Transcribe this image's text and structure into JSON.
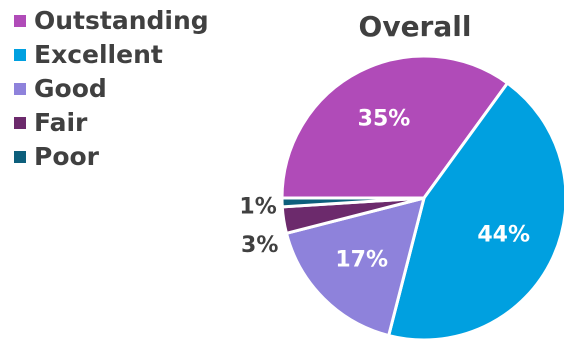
{
  "chart_data": {
    "type": "pie",
    "title": "Overall",
    "categories": [
      "Outstanding",
      "Excellent",
      "Good",
      "Fair",
      "Poor"
    ],
    "values": [
      35,
      44,
      17,
      3,
      1
    ],
    "labels": [
      "35%",
      "44%",
      "17%",
      "3%",
      "1%"
    ],
    "colors": [
      "#b04bb8",
      "#00a0e0",
      "#8e82db",
      "#6c2a6c",
      "#0d5f7c"
    ],
    "legend_position": "top-left",
    "start": "9 o'clock, clockwise"
  }
}
